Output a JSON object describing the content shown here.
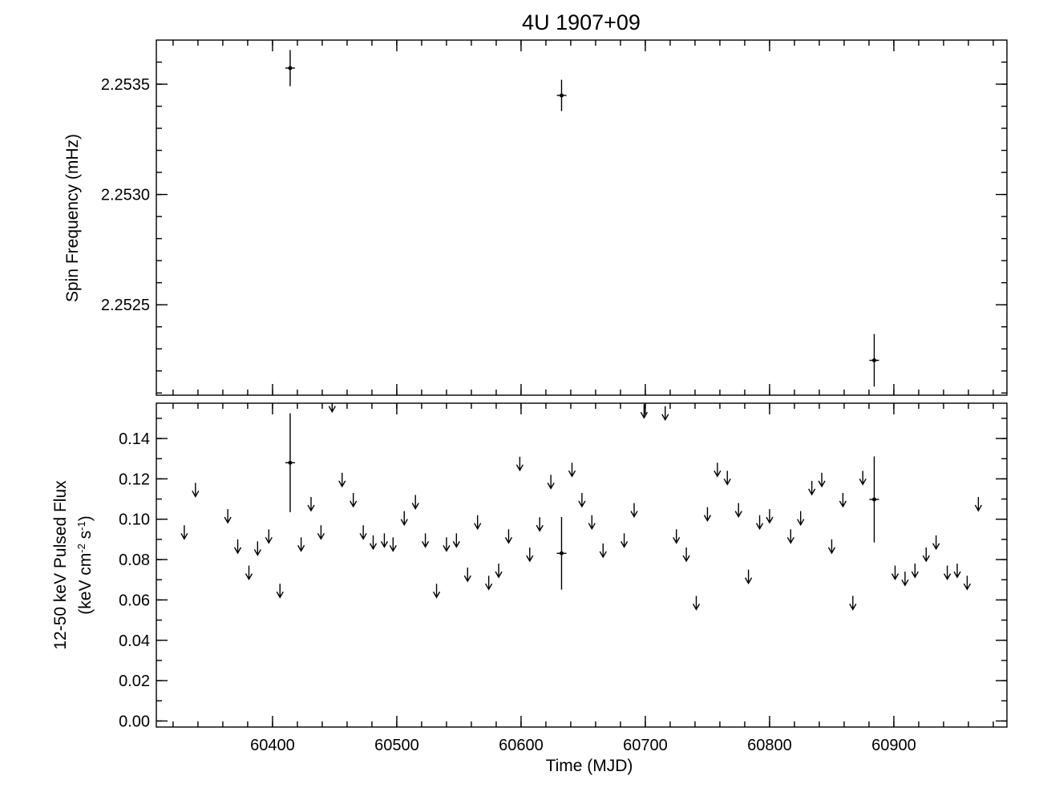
{
  "chart_data": [
    {
      "type": "errorbar",
      "title": "4U 1907+09",
      "ylabel": "Spin Frequency (mHz)",
      "xlim": [
        60306.5,
        60991
      ],
      "ylim": [
        2.25209,
        2.2537
      ],
      "yticks": [
        {
          "value": 2.2525,
          "label": "2.2525"
        },
        {
          "value": 2.253,
          "label": "2.2530"
        },
        {
          "value": 2.2535,
          "label": "2.2535"
        }
      ],
      "series": [
        {
          "color": "#000000",
          "marker": "point",
          "x": [
            60414.2,
            60632.6,
            60884.2
          ],
          "values": [
            2.253573,
            2.253449,
            2.252248
          ],
          "errors": [
            8.2e-05,
            7.1e-05,
            0.000119
          ]
        }
      ]
    },
    {
      "type": "errorbar",
      "xlabel": "Time (MJD)",
      "ylabel": "12-50 keV Pulsed Flux",
      "ylabel_line2": [
        "(keV cm",
        "-2",
        " s",
        "-1",
        ")"
      ],
      "xlim": [
        60306.5,
        60991
      ],
      "ylim": [
        -0.003,
        0.1575
      ],
      "xticks": [
        60400,
        60500,
        60600,
        60700,
        60800,
        60900
      ],
      "yticks": [
        {
          "value": 0,
          "label": "0.00"
        },
        0.02,
        0.04,
        0.06,
        0.08,
        {
          "value": 0.1,
          "label": "0.10"
        },
        0.12,
        0.14
      ],
      "series": [
        {
          "color": "#000000",
          "marker": "point",
          "x": [
            60414.2,
            60632.6,
            60884.2
          ],
          "values": [
            0.128,
            0.0831,
            0.1098
          ],
          "errors": [
            0.0245,
            0.018,
            0.0213
          ]
        },
        {
          "color": "#000000",
          "marker": "arrow",
          "x": [
            60329,
            60338,
            60364,
            60372,
            60381,
            60388,
            60397,
            60406,
            60423,
            60431,
            60439,
            60448,
            60456,
            60465,
            60473,
            60481,
            60490,
            60497,
            60506,
            60515,
            60523,
            60532,
            60540,
            60548,
            60557,
            60565,
            60574,
            60582,
            60590,
            60599,
            60607,
            60615,
            60624,
            60641,
            60649,
            60657,
            60666,
            60683,
            60691,
            60699,
            60716,
            60725,
            60733,
            60741,
            60750,
            60758,
            60766,
            60775,
            60783,
            60792,
            60800,
            60817,
            60825,
            60834,
            60842,
            60850,
            60859,
            60867,
            60875,
            60901,
            60909,
            60917,
            60926,
            60934,
            60943,
            60951,
            60959,
            60968
          ],
          "values": [
            0.097,
            0.118,
            0.105,
            0.09,
            0.077,
            0.089,
            0.095,
            0.068,
            0.091,
            0.111,
            0.097,
            0.16,
            0.123,
            0.113,
            0.097,
            0.092,
            0.093,
            0.091,
            0.104,
            0.112,
            0.093,
            0.068,
            0.091,
            0.093,
            0.076,
            0.102,
            0.072,
            0.078,
            0.095,
            0.131,
            0.086,
            0.101,
            0.122,
            0.128,
            0.113,
            0.102,
            0.088,
            0.093,
            0.108,
            0.157,
            0.156,
            0.095,
            0.086,
            0.062,
            0.106,
            0.128,
            0.124,
            0.108,
            0.075,
            0.102,
            0.105,
            0.095,
            0.104,
            0.119,
            0.123,
            0.09,
            0.113,
            0.062,
            0.124,
            0.077,
            0.074,
            0.078,
            0.086,
            0.092,
            0.077,
            0.078,
            0.072,
            0.111
          ]
        }
      ]
    }
  ]
}
